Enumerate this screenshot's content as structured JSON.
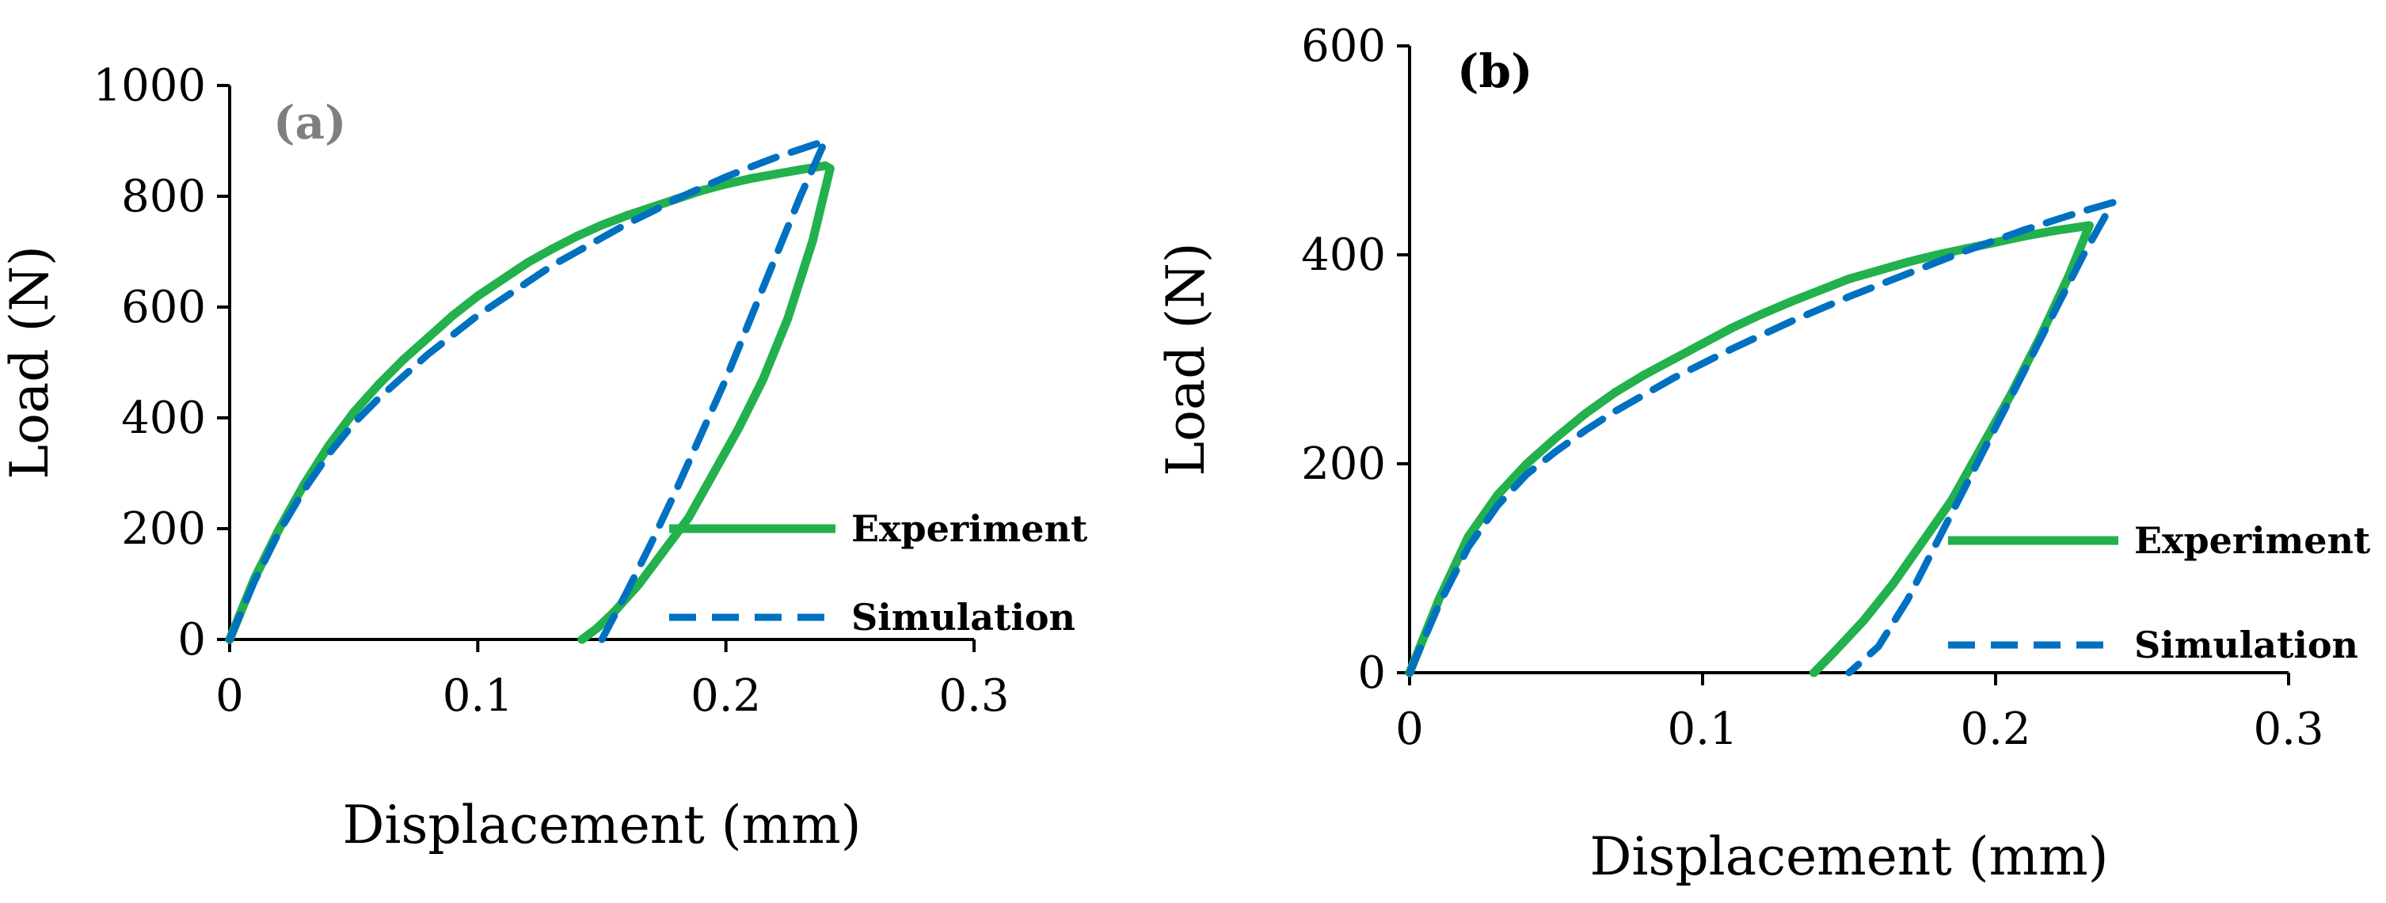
{
  "colors": {
    "experiment": "#22b14c",
    "simulation": "#0070c0",
    "panel_a_label": "#7f7f7f",
    "panel_b_label": "#000000"
  },
  "chart_data": [
    {
      "id": "a",
      "type": "line",
      "panel_label": "(a)",
      "xlabel": "Displacement (mm)",
      "ylabel": "Load (N)",
      "xlim": [
        0,
        0.3
      ],
      "ylim": [
        0,
        1000
      ],
      "x_ticks": [
        0,
        0.1,
        0.2,
        0.3
      ],
      "x_tick_labels": [
        "0",
        "0.1",
        "0.2",
        "0.3"
      ],
      "y_ticks": [
        0,
        200,
        400,
        600,
        800,
        1000
      ],
      "y_tick_labels": [
        "0",
        "200",
        "400",
        "600",
        "800",
        "1000"
      ],
      "grid": false,
      "legend_position": "bottom-right",
      "series": [
        {
          "name": "Experiment",
          "style": "solid",
          "x": [
            0,
            0.01,
            0.02,
            0.03,
            0.04,
            0.05,
            0.06,
            0.07,
            0.08,
            0.09,
            0.1,
            0.11,
            0.12,
            0.13,
            0.14,
            0.15,
            0.16,
            0.17,
            0.18,
            0.19,
            0.2,
            0.21,
            0.22,
            0.23,
            0.24,
            0.242,
            0.235,
            0.225,
            0.215,
            0.205,
            0.195,
            0.185,
            0.175,
            0.165,
            0.155,
            0.148,
            0.142
          ],
          "y": [
            0,
            110,
            200,
            280,
            350,
            410,
            460,
            505,
            545,
            585,
            620,
            650,
            680,
            705,
            728,
            748,
            765,
            780,
            795,
            810,
            822,
            832,
            840,
            848,
            855,
            850,
            720,
            580,
            470,
            380,
            300,
            220,
            160,
            100,
            50,
            20,
            0
          ]
        },
        {
          "name": "Simulation",
          "style": "dashed",
          "x": [
            0,
            0.01,
            0.02,
            0.03,
            0.04,
            0.05,
            0.06,
            0.07,
            0.08,
            0.09,
            0.1,
            0.11,
            0.12,
            0.13,
            0.14,
            0.15,
            0.16,
            0.17,
            0.18,
            0.19,
            0.2,
            0.21,
            0.22,
            0.23,
            0.24,
            0.23,
            0.22,
            0.21,
            0.2,
            0.19,
            0.18,
            0.17,
            0.16,
            0.15
          ],
          "y": [
            0,
            105,
            195,
            270,
            335,
            390,
            435,
            475,
            515,
            550,
            585,
            615,
            645,
            675,
            700,
            725,
            750,
            772,
            795,
            815,
            835,
            853,
            870,
            885,
            900,
            800,
            690,
            580,
            470,
            370,
            270,
            175,
            85,
            0
          ]
        }
      ]
    },
    {
      "id": "b",
      "type": "line",
      "panel_label": "(b)",
      "xlabel": "Displacement (mm)",
      "ylabel": "Load (N)",
      "xlim": [
        0,
        0.3
      ],
      "ylim": [
        0,
        600
      ],
      "x_ticks": [
        0,
        0.1,
        0.2,
        0.3
      ],
      "x_tick_labels": [
        "0",
        "0.1",
        "0.2",
        "0.3"
      ],
      "y_ticks": [
        0,
        200,
        400,
        600
      ],
      "y_tick_labels": [
        "0",
        "200",
        "400",
        "600"
      ],
      "grid": false,
      "legend_position": "bottom-right",
      "series": [
        {
          "name": "Experiment",
          "style": "solid",
          "x": [
            0,
            0.01,
            0.02,
            0.03,
            0.04,
            0.05,
            0.06,
            0.07,
            0.08,
            0.09,
            0.1,
            0.11,
            0.12,
            0.13,
            0.14,
            0.15,
            0.16,
            0.17,
            0.18,
            0.19,
            0.2,
            0.21,
            0.22,
            0.232,
            0.225,
            0.215,
            0.205,
            0.195,
            0.185,
            0.175,
            0.165,
            0.155,
            0.145,
            0.138
          ],
          "y": [
            0,
            70,
            130,
            170,
            200,
            225,
            248,
            268,
            285,
            300,
            315,
            330,
            343,
            355,
            366,
            377,
            385,
            393,
            400,
            406,
            412,
            418,
            423,
            428,
            380,
            320,
            265,
            215,
            165,
            125,
            85,
            50,
            20,
            0
          ]
        },
        {
          "name": "Simulation",
          "style": "dashed",
          "x": [
            0,
            0.01,
            0.02,
            0.03,
            0.04,
            0.05,
            0.06,
            0.07,
            0.08,
            0.09,
            0.1,
            0.11,
            0.12,
            0.13,
            0.14,
            0.15,
            0.16,
            0.17,
            0.18,
            0.19,
            0.2,
            0.21,
            0.22,
            0.23,
            0.24,
            0.23,
            0.22,
            0.21,
            0.2,
            0.19,
            0.18,
            0.17,
            0.16,
            0.15
          ],
          "y": [
            0,
            65,
            120,
            160,
            190,
            212,
            232,
            250,
            266,
            282,
            296,
            310,
            323,
            336,
            348,
            360,
            371,
            382,
            393,
            404,
            414,
            424,
            433,
            442,
            450,
            400,
            345,
            290,
            235,
            180,
            125,
            70,
            25,
            0
          ]
        }
      ]
    }
  ]
}
